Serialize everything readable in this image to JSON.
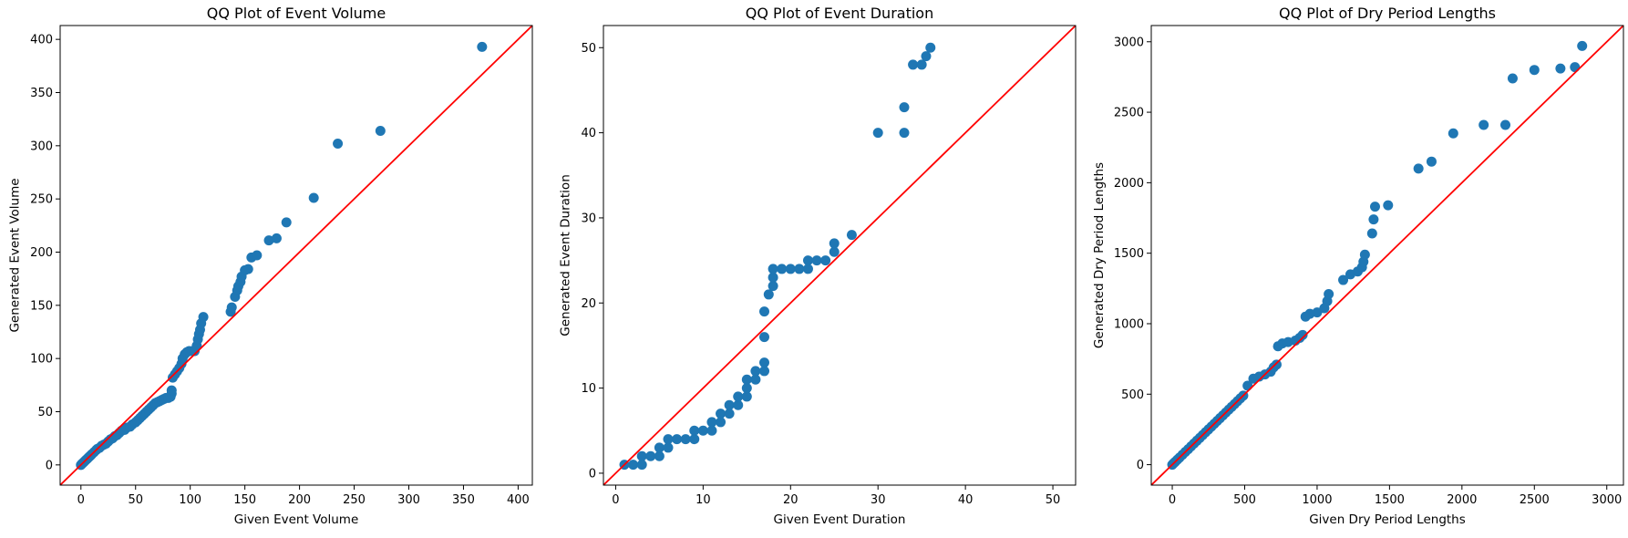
{
  "chart_data": [
    {
      "type": "scatter",
      "title": "QQ Plot of Event Volume",
      "xlabel": "Given Event Volume",
      "ylabel": "Generated Event Volume",
      "xlim": [
        -19,
        413
      ],
      "ylim": [
        -19,
        413
      ],
      "xticks": [
        0,
        50,
        100,
        150,
        200,
        250,
        300,
        350,
        400
      ],
      "yticks": [
        0,
        50,
        100,
        150,
        200,
        250,
        300,
        350,
        400
      ],
      "reference_line": "y = x",
      "points": [
        [
          0,
          0
        ],
        [
          1,
          1
        ],
        [
          2,
          2
        ],
        [
          3,
          3
        ],
        [
          4,
          4
        ],
        [
          5,
          5
        ],
        [
          6,
          6
        ],
        [
          7,
          7
        ],
        [
          8,
          8
        ],
        [
          9,
          9
        ],
        [
          10,
          10
        ],
        [
          12,
          12
        ],
        [
          14,
          14
        ],
        [
          15,
          15
        ],
        [
          17,
          16
        ],
        [
          19,
          18
        ],
        [
          21,
          19
        ],
        [
          23,
          20
        ],
        [
          25,
          22
        ],
        [
          27,
          24
        ],
        [
          29,
          25
        ],
        [
          31,
          27
        ],
        [
          33,
          28
        ],
        [
          35,
          30
        ],
        [
          37,
          32
        ],
        [
          40,
          33
        ],
        [
          42,
          35
        ],
        [
          45,
          36
        ],
        [
          47,
          38
        ],
        [
          50,
          40
        ],
        [
          52,
          42
        ],
        [
          54,
          44
        ],
        [
          56,
          46
        ],
        [
          58,
          48
        ],
        [
          60,
          50
        ],
        [
          62,
          52
        ],
        [
          64,
          54
        ],
        [
          66,
          56
        ],
        [
          68,
          58
        ],
        [
          70,
          59
        ],
        [
          72,
          60
        ],
        [
          74,
          61
        ],
        [
          76,
          62
        ],
        [
          78,
          63
        ],
        [
          80,
          63
        ],
        [
          82,
          64
        ],
        [
          83,
          67
        ],
        [
          83,
          70
        ],
        [
          84,
          82
        ],
        [
          86,
          85
        ],
        [
          88,
          88
        ],
        [
          90,
          91
        ],
        [
          92,
          95
        ],
        [
          93,
          100
        ],
        [
          95,
          104
        ],
        [
          97,
          106
        ],
        [
          99,
          107
        ],
        [
          102,
          107
        ],
        [
          104,
          107
        ],
        [
          106,
          112
        ],
        [
          107,
          118
        ],
        [
          108,
          123
        ],
        [
          109,
          127
        ],
        [
          110,
          133
        ],
        [
          112,
          139
        ],
        [
          137,
          144
        ],
        [
          138,
          148
        ],
        [
          141,
          158
        ],
        [
          143,
          164
        ],
        [
          144,
          168
        ],
        [
          146,
          172
        ],
        [
          147,
          177
        ],
        [
          150,
          183
        ],
        [
          153,
          184
        ],
        [
          156,
          195
        ],
        [
          161,
          197
        ],
        [
          172,
          211
        ],
        [
          179,
          213
        ],
        [
          188,
          228
        ],
        [
          213,
          251
        ],
        [
          235,
          302
        ],
        [
          274,
          314
        ],
        [
          367,
          393
        ]
      ]
    },
    {
      "type": "scatter",
      "title": "QQ Plot of Event Duration",
      "xlabel": "Given Event Duration",
      "ylabel": "Generated Event Duration",
      "xlim": [
        -1.4,
        52.6
      ],
      "ylim": [
        -1.4,
        52.6
      ],
      "xticks": [
        0,
        10,
        20,
        30,
        40,
        50
      ],
      "yticks": [
        0,
        10,
        20,
        30,
        40,
        50
      ],
      "reference_line": "y = x",
      "points": [
        [
          1,
          1
        ],
        [
          2,
          1
        ],
        [
          3,
          1
        ],
        [
          3,
          2
        ],
        [
          4,
          2
        ],
        [
          5,
          2
        ],
        [
          5,
          3
        ],
        [
          6,
          3
        ],
        [
          6,
          4
        ],
        [
          7,
          4
        ],
        [
          8,
          4
        ],
        [
          9,
          4
        ],
        [
          9,
          5
        ],
        [
          10,
          5
        ],
        [
          11,
          5
        ],
        [
          11,
          6
        ],
        [
          12,
          6
        ],
        [
          12,
          7
        ],
        [
          13,
          7
        ],
        [
          13,
          8
        ],
        [
          14,
          8
        ],
        [
          14,
          9
        ],
        [
          15,
          9
        ],
        [
          15,
          10
        ],
        [
          15,
          11
        ],
        [
          16,
          11
        ],
        [
          16,
          12
        ],
        [
          17,
          12
        ],
        [
          17,
          13
        ],
        [
          17,
          16
        ],
        [
          17,
          19
        ],
        [
          17.5,
          21
        ],
        [
          18,
          22
        ],
        [
          18,
          23
        ],
        [
          18,
          24
        ],
        [
          19,
          24
        ],
        [
          20,
          24
        ],
        [
          21,
          24
        ],
        [
          22,
          24
        ],
        [
          22,
          25
        ],
        [
          23,
          25
        ],
        [
          24,
          25
        ],
        [
          25,
          26
        ],
        [
          25,
          27
        ],
        [
          27,
          28
        ],
        [
          30,
          40
        ],
        [
          33,
          40
        ],
        [
          33,
          43
        ],
        [
          34,
          48
        ],
        [
          35,
          48
        ],
        [
          35.5,
          49
        ],
        [
          36,
          50
        ]
      ]
    },
    {
      "type": "scatter",
      "title": "QQ Plot of Dry Period Lengths",
      "xlabel": "Given Dry Period Lengths",
      "ylabel": "Generated Dry Period Lengths",
      "xlim": [
        -145,
        3115
      ],
      "ylim": [
        -145,
        3115
      ],
      "xticks": [
        0,
        500,
        1000,
        1500,
        2000,
        2500,
        3000
      ],
      "yticks": [
        0,
        500,
        1000,
        1500,
        2000,
        2500,
        3000
      ],
      "reference_line": "y = x",
      "points": [
        [
          0,
          0
        ],
        [
          10,
          10
        ],
        [
          20,
          20
        ],
        [
          35,
          35
        ],
        [
          50,
          50
        ],
        [
          70,
          70
        ],
        [
          90,
          90
        ],
        [
          110,
          110
        ],
        [
          130,
          130
        ],
        [
          150,
          150
        ],
        [
          170,
          170
        ],
        [
          190,
          190
        ],
        [
          210,
          210
        ],
        [
          230,
          230
        ],
        [
          250,
          250
        ],
        [
          270,
          270
        ],
        [
          290,
          290
        ],
        [
          310,
          310
        ],
        [
          330,
          330
        ],
        [
          350,
          350
        ],
        [
          370,
          370
        ],
        [
          390,
          390
        ],
        [
          410,
          410
        ],
        [
          430,
          430
        ],
        [
          450,
          450
        ],
        [
          470,
          470
        ],
        [
          490,
          490
        ],
        [
          520,
          560
        ],
        [
          560,
          610
        ],
        [
          600,
          625
        ],
        [
          640,
          640
        ],
        [
          680,
          660
        ],
        [
          700,
          690
        ],
        [
          720,
          710
        ],
        [
          730,
          840
        ],
        [
          760,
          860
        ],
        [
          800,
          870
        ],
        [
          850,
          880
        ],
        [
          880,
          900
        ],
        [
          900,
          920
        ],
        [
          920,
          1050
        ],
        [
          950,
          1070
        ],
        [
          1000,
          1080
        ],
        [
          1050,
          1110
        ],
        [
          1070,
          1160
        ],
        [
          1080,
          1210
        ],
        [
          1180,
          1310
        ],
        [
          1230,
          1350
        ],
        [
          1280,
          1370
        ],
        [
          1310,
          1400
        ],
        [
          1320,
          1440
        ],
        [
          1330,
          1490
        ],
        [
          1380,
          1640
        ],
        [
          1390,
          1740
        ],
        [
          1400,
          1830
        ],
        [
          1490,
          1840
        ],
        [
          1700,
          2100
        ],
        [
          1790,
          2150
        ],
        [
          1940,
          2350
        ],
        [
          2150,
          2410
        ],
        [
          2300,
          2410
        ],
        [
          2350,
          2740
        ],
        [
          2500,
          2800
        ],
        [
          2680,
          2810
        ],
        [
          2780,
          2820
        ],
        [
          2830,
          2970
        ]
      ]
    }
  ]
}
